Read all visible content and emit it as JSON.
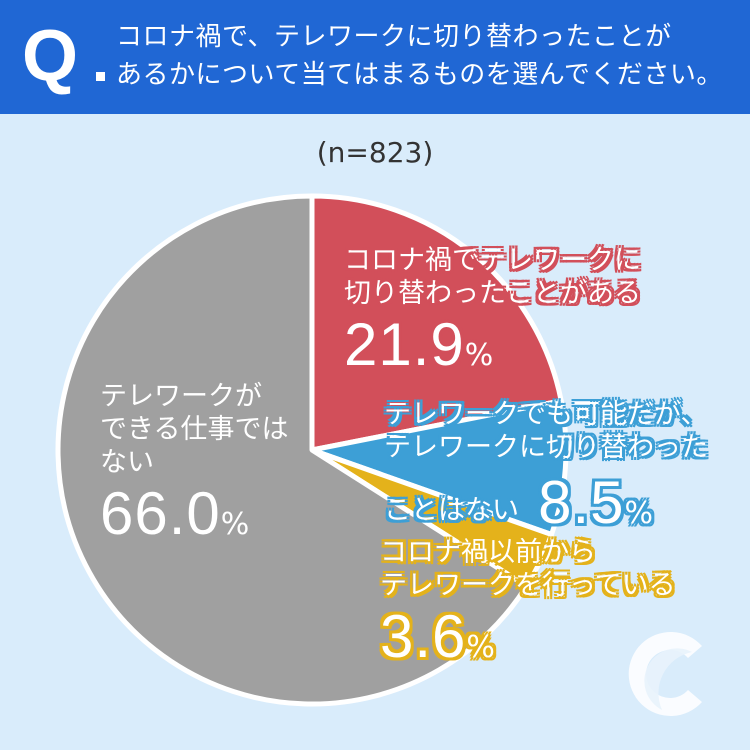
{
  "header": {
    "q_mark": "Q",
    "question_line1": "コロナ禍で、テレワークに切り替わったことが",
    "question_line2": "あるかについて当てはまるものを選んでください。"
  },
  "sample_size": "(n=823)",
  "colors": {
    "header": "#2067d4",
    "background": "#d9ecfb",
    "red": "#d24f5a",
    "blue": "#3d9fd6",
    "yellow": "#e4b21b",
    "gray": "#a0a0a0"
  },
  "chart_data": {
    "type": "pie",
    "title": "",
    "slices": [
      {
        "label_lines": [
          "コロナ禍でテレワークに",
          "切り替わったことがある"
        ],
        "value": 21.9,
        "value_label": "21.9",
        "color": "#d24f5a"
      },
      {
        "label_lines": [
          "テレワークでも可能だが、",
          "テレワークに切り替わった",
          "ことはない"
        ],
        "value": 8.5,
        "value_label": "8.5",
        "color": "#3d9fd6"
      },
      {
        "label_lines": [
          "コロナ禍以前から",
          "テレワークを行っている"
        ],
        "value": 3.6,
        "value_label": "3.6",
        "color": "#e4b21b"
      },
      {
        "label_lines": [
          "テレワークが",
          "できる仕事では",
          "ない"
        ],
        "value": 66.0,
        "value_label": "66.0",
        "color": "#a0a0a0"
      }
    ],
    "unit": "%",
    "start_angle": "12 o'clock",
    "direction": "clockwise"
  },
  "logo": {
    "icon": "c-logo-icon"
  }
}
